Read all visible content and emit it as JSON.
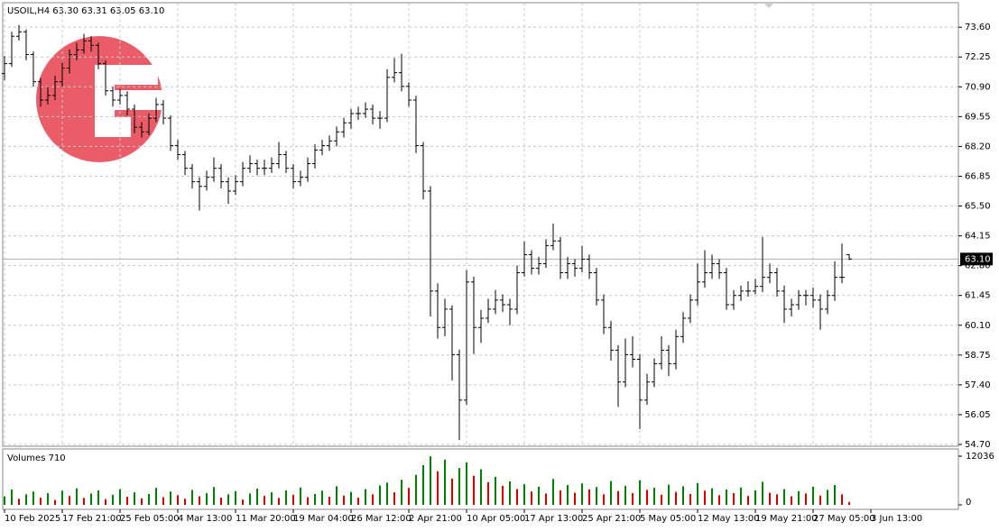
{
  "chart_data": {
    "type": "ohlc",
    "header": "USOIL,H4  63.30 63.31 63.05 63.10",
    "color": "#000000",
    "ohlc": [
      [
        71.5,
        72.3,
        71.2,
        71.95
      ],
      [
        71.95,
        73.4,
        71.8,
        73.19
      ],
      [
        73.19,
        73.7,
        73.0,
        73.39
      ],
      [
        73.39,
        73.5,
        72.1,
        72.36
      ],
      [
        72.36,
        72.5,
        70.9,
        71.13
      ],
      [
        71.13,
        71.3,
        70.0,
        70.3
      ],
      [
        70.3,
        70.9,
        70.1,
        70.51
      ],
      [
        70.51,
        71.4,
        70.3,
        71.13
      ],
      [
        71.13,
        72.0,
        70.9,
        71.75
      ],
      [
        71.75,
        72.6,
        71.5,
        72.36
      ],
      [
        72.36,
        72.9,
        72.1,
        72.57
      ],
      [
        72.57,
        73.3,
        72.4,
        72.98
      ],
      [
        72.98,
        73.2,
        72.5,
        72.78
      ],
      [
        72.78,
        72.9,
        71.7,
        71.95
      ],
      [
        71.95,
        72.1,
        70.5,
        70.72
      ],
      [
        70.72,
        70.9,
        70.0,
        70.3
      ],
      [
        70.3,
        70.8,
        70.1,
        70.51
      ],
      [
        70.51,
        70.7,
        69.6,
        69.89
      ],
      [
        69.89,
        70.1,
        68.8,
        69.07
      ],
      [
        69.07,
        69.3,
        68.6,
        68.86
      ],
      [
        68.86,
        69.7,
        68.7,
        69.48
      ],
      [
        69.48,
        70.4,
        69.3,
        70.1
      ],
      [
        70.1,
        70.3,
        69.2,
        69.48
      ],
      [
        69.48,
        69.6,
        68.0,
        68.24
      ],
      [
        68.24,
        68.5,
        67.6,
        67.83
      ],
      [
        67.83,
        68.0,
        66.9,
        67.21
      ],
      [
        67.21,
        67.4,
        66.3,
        66.6
      ],
      [
        66.6,
        66.8,
        65.3,
        66.39
      ],
      [
        66.39,
        67.1,
        66.2,
        66.8
      ],
      [
        66.8,
        67.7,
        66.6,
        67.21
      ],
      [
        67.21,
        67.4,
        66.3,
        66.6
      ],
      [
        66.6,
        66.8,
        65.6,
        66.18
      ],
      [
        66.18,
        66.9,
        66.0,
        66.6
      ],
      [
        66.6,
        67.5,
        66.4,
        67.21
      ],
      [
        67.21,
        67.8,
        67.0,
        67.42
      ],
      [
        67.42,
        67.6,
        66.9,
        67.21
      ],
      [
        67.21,
        67.6,
        66.9,
        67.21
      ],
      [
        67.21,
        67.7,
        67.0,
        67.42
      ],
      [
        67.42,
        68.4,
        67.2,
        67.83
      ],
      [
        67.83,
        68.0,
        67.0,
        67.21
      ],
      [
        67.21,
        67.4,
        66.3,
        66.6
      ],
      [
        66.6,
        67.1,
        66.4,
        66.8
      ],
      [
        66.8,
        67.7,
        66.6,
        67.42
      ],
      [
        67.42,
        68.3,
        67.2,
        68.04
      ],
      [
        68.04,
        68.5,
        67.8,
        68.24
      ],
      [
        68.24,
        68.7,
        68.0,
        68.45
      ],
      [
        68.45,
        69.1,
        68.2,
        68.86
      ],
      [
        68.86,
        69.5,
        68.6,
        69.27
      ],
      [
        69.27,
        69.9,
        69.0,
        69.69
      ],
      [
        69.69,
        70.0,
        69.4,
        69.69
      ],
      [
        69.69,
        70.2,
        69.5,
        69.89
      ],
      [
        69.89,
        70.1,
        69.2,
        69.48
      ],
      [
        69.48,
        69.8,
        69.0,
        69.48
      ],
      [
        69.48,
        71.7,
        69.3,
        71.33
      ],
      [
        71.33,
        72.2,
        71.1,
        71.54
      ],
      [
        71.54,
        72.4,
        70.7,
        70.92
      ],
      [
        70.92,
        71.1,
        70.0,
        70.3
      ],
      [
        70.3,
        70.5,
        67.9,
        68.24
      ],
      [
        68.24,
        68.4,
        65.8,
        66.18
      ],
      [
        66.18,
        66.4,
        60.5,
        61.65
      ],
      [
        61.65,
        62.0,
        59.5,
        60.0
      ],
      [
        60.0,
        61.3,
        59.6,
        60.83
      ],
      [
        60.83,
        61.0,
        57.6,
        58.77
      ],
      [
        58.77,
        59.0,
        54.9,
        56.71
      ],
      [
        56.71,
        62.6,
        56.5,
        62.06
      ],
      [
        62.06,
        62.3,
        58.8,
        60.0
      ],
      [
        60.0,
        60.8,
        59.3,
        60.42
      ],
      [
        60.42,
        61.3,
        60.2,
        60.83
      ],
      [
        60.83,
        61.7,
        60.6,
        61.24
      ],
      [
        61.24,
        61.5,
        60.7,
        61.03
      ],
      [
        61.03,
        61.3,
        60.1,
        60.83
      ],
      [
        60.83,
        62.8,
        60.6,
        62.48
      ],
      [
        62.48,
        63.9,
        62.3,
        63.3
      ],
      [
        63.3,
        63.5,
        62.4,
        62.68
      ],
      [
        62.68,
        63.2,
        62.4,
        62.89
      ],
      [
        62.89,
        64.0,
        62.7,
        63.71
      ],
      [
        63.71,
        64.7,
        63.5,
        63.92
      ],
      [
        63.92,
        64.1,
        62.2,
        62.48
      ],
      [
        62.48,
        63.2,
        62.2,
        62.89
      ],
      [
        62.89,
        63.1,
        62.3,
        62.68
      ],
      [
        62.68,
        63.7,
        62.5,
        63.09
      ],
      [
        63.09,
        63.3,
        62.2,
        62.48
      ],
      [
        62.48,
        62.7,
        61.0,
        61.24
      ],
      [
        61.24,
        61.5,
        59.7,
        60.0
      ],
      [
        60.0,
        60.3,
        58.5,
        58.97
      ],
      [
        58.97,
        59.2,
        56.4,
        57.53
      ],
      [
        57.53,
        59.5,
        57.3,
        58.77
      ],
      [
        58.77,
        59.6,
        58.2,
        58.56
      ],
      [
        58.56,
        58.8,
        55.4,
        56.71
      ],
      [
        56.71,
        57.9,
        56.5,
        57.53
      ],
      [
        57.53,
        58.6,
        57.3,
        58.36
      ],
      [
        58.36,
        59.6,
        58.1,
        58.97
      ],
      [
        58.97,
        59.2,
        57.8,
        58.36
      ],
      [
        58.36,
        59.9,
        58.1,
        59.59
      ],
      [
        59.59,
        60.7,
        59.3,
        60.42
      ],
      [
        60.42,
        61.5,
        60.2,
        61.24
      ],
      [
        61.24,
        62.9,
        61.0,
        62.06
      ],
      [
        62.06,
        63.5,
        61.8,
        62.48
      ],
      [
        62.48,
        63.3,
        62.2,
        62.89
      ],
      [
        62.89,
        63.1,
        62.2,
        62.48
      ],
      [
        62.48,
        62.7,
        60.8,
        61.03
      ],
      [
        61.03,
        61.7,
        60.8,
        61.45
      ],
      [
        61.45,
        61.9,
        61.2,
        61.65
      ],
      [
        61.65,
        62.1,
        61.4,
        61.65
      ],
      [
        61.65,
        62.2,
        61.5,
        61.86
      ],
      [
        61.86,
        64.1,
        61.6,
        62.27
      ],
      [
        62.27,
        62.9,
        62.0,
        62.48
      ],
      [
        62.48,
        62.7,
        61.4,
        61.65
      ],
      [
        61.65,
        61.9,
        60.2,
        60.83
      ],
      [
        60.83,
        61.3,
        60.5,
        61.03
      ],
      [
        61.03,
        61.7,
        60.8,
        61.45
      ],
      [
        61.45,
        61.7,
        61.0,
        61.45
      ],
      [
        61.45,
        61.8,
        60.9,
        61.24
      ],
      [
        61.24,
        61.5,
        59.9,
        60.83
      ],
      [
        60.83,
        61.7,
        60.6,
        61.45
      ],
      [
        61.45,
        63.0,
        61.2,
        62.27
      ],
      [
        62.27,
        63.8,
        62.0,
        62.27
      ],
      [
        63.3,
        63.31,
        63.05,
        63.1
      ]
    ],
    "xlim": [
      -0.25,
      132.125
    ],
    "xticks": [
      {
        "value": 0,
        "label": "10 Feb 2025"
      },
      {
        "value": 8,
        "label": "17 Feb 21:00"
      },
      {
        "value": 16,
        "label": "25 Feb 05:00"
      },
      {
        "value": 24,
        "label": "4 Mar 13:00"
      },
      {
        "value": 32,
        "label": "11 Mar 20:00"
      },
      {
        "value": 40,
        "label": "19 Mar 04:00"
      },
      {
        "value": 48,
        "label": "26 Mar 12:00"
      },
      {
        "value": 56,
        "label": "2 Apr 21:00"
      },
      {
        "value": 64,
        "label": "10 Apr 05:00"
      },
      {
        "value": 72,
        "label": "17 Apr 13:00"
      },
      {
        "value": 80,
        "label": "25 Apr 21:00"
      },
      {
        "value": 88,
        "label": "5 May 05:00"
      },
      {
        "value": 96,
        "label": "12 May 13:00"
      },
      {
        "value": 104,
        "label": "19 May 21:00"
      },
      {
        "value": 112,
        "label": "27 May 05:00"
      },
      {
        "value": 120,
        "label": "3 Jun 13:00"
      }
    ],
    "ylim": [
      54.62,
      74.71
    ],
    "yticks": [
      {
        "value": 73.6,
        "label": "73.60"
      },
      72.25,
      {
        "value": 70.9,
        "label": "70.90"
      },
      69.55,
      {
        "value": 68.2,
        "label": "68.20"
      },
      66.85,
      {
        "value": 65.5,
        "label": "65.50"
      },
      64.15,
      {
        "value": 62.8,
        "label": "62.80"
      },
      61.45,
      {
        "value": 60.1,
        "label": "60.10"
      },
      58.75,
      {
        "value": 57.4,
        "label": "57.40"
      },
      56.05,
      {
        "value": 54.7,
        "label": "54.70"
      }
    ],
    "grid": true,
    "last_price": {
      "value": 63.1,
      "label": "63.10"
    },
    "volumes": {
      "title": "Volumes 710",
      "up_color": "#008000",
      "down_color": "#d00000",
      "ylim": [
        0,
        12036
      ],
      "yticks": [
        0,
        12036
      ],
      "values": [
        2100,
        3800,
        1500,
        2600,
        3300,
        1800,
        2900,
        1200,
        3500,
        2200,
        4100,
        1700,
        2800,
        3600,
        1400,
        2500,
        3900,
        2000,
        3100,
        1600,
        2700,
        4200,
        1900,
        3300,
        2400,
        1500,
        3700,
        2100,
        2900,
        4400,
        1800,
        2600,
        3400,
        1300,
        2800,
        4000,
        2200,
        3100,
        1700,
        3600,
        2500,
        4300,
        1900,
        2700,
        3500,
        2000,
        4600,
        2300,
        3200,
        1800,
        3900,
        2600,
        4800,
        5500,
        3100,
        6200,
        4200,
        7400,
        9800,
        12000,
        8300,
        11200,
        6500,
        9100,
        10500,
        7200,
        8800,
        5600,
        6900,
        4700,
        5800,
        3900,
        5100,
        3300,
        4500,
        2800,
        6400,
        3600,
        4900,
        3000,
        5300,
        3800,
        4400,
        2600,
        5900,
        3400,
        4700,
        2900,
        6100,
        3700,
        4200,
        2500,
        5000,
        3200,
        4600,
        2700,
        5400,
        3500,
        4100,
        2400,
        3800,
        2900,
        4300,
        2200,
        3600,
        5700,
        3000,
        2600,
        3900,
        2100,
        3400,
        2800,
        4500,
        2300,
        3700,
        4900,
        2600,
        710
      ]
    }
  }
}
